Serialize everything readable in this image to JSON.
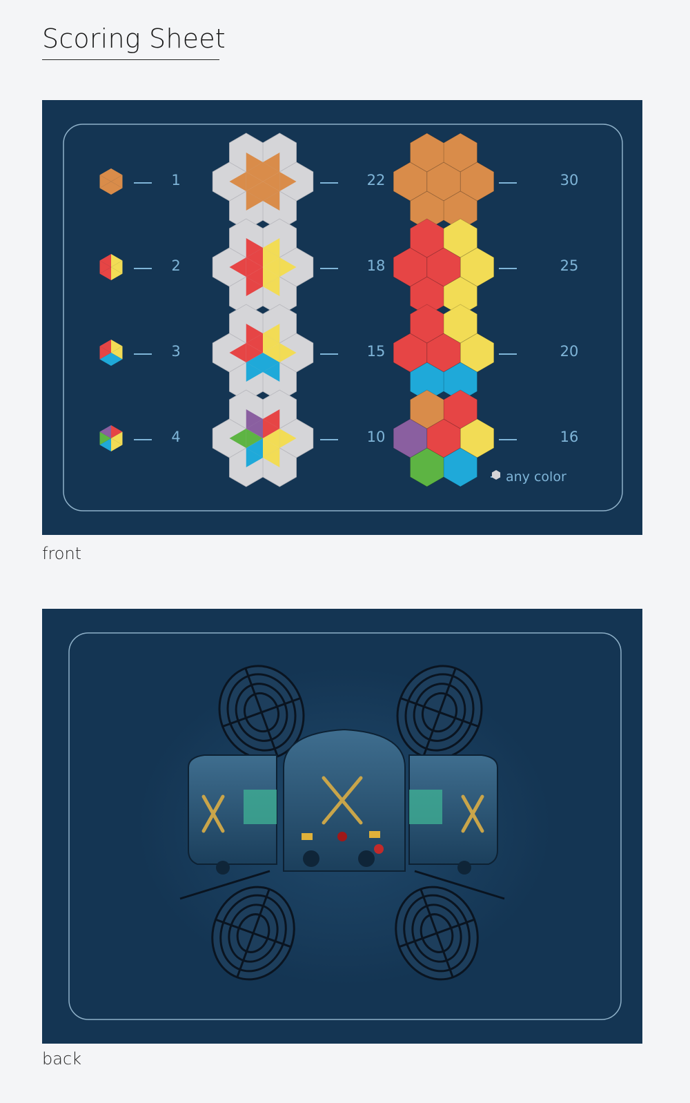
{
  "page": {
    "title": "Scoring Sheet"
  },
  "front": {
    "caption": "front",
    "rows": [
      {
        "single_score": "1",
        "star_score": "22",
        "flower_score": "30"
      },
      {
        "single_score": "2",
        "star_score": "18",
        "flower_score": "25"
      },
      {
        "single_score": "3",
        "star_score": "15",
        "flower_score": "20"
      },
      {
        "single_score": "4",
        "star_score": "10",
        "flower_score": "16"
      }
    ],
    "legend": {
      "icon": "grey-hexagon-icon",
      "label": "any color"
    }
  },
  "back": {
    "caption": "back",
    "illustration": "robot-drone-x-icon"
  },
  "colors": {
    "card_bg": "#143553",
    "text": "#7fb5d8",
    "orange": "#d98c4a",
    "red": "#e64545",
    "yellow": "#f2dc55",
    "blue": "#1fa9d9",
    "purple": "#8a5fa0",
    "green": "#5db443",
    "grey": "#d5d5d8"
  }
}
